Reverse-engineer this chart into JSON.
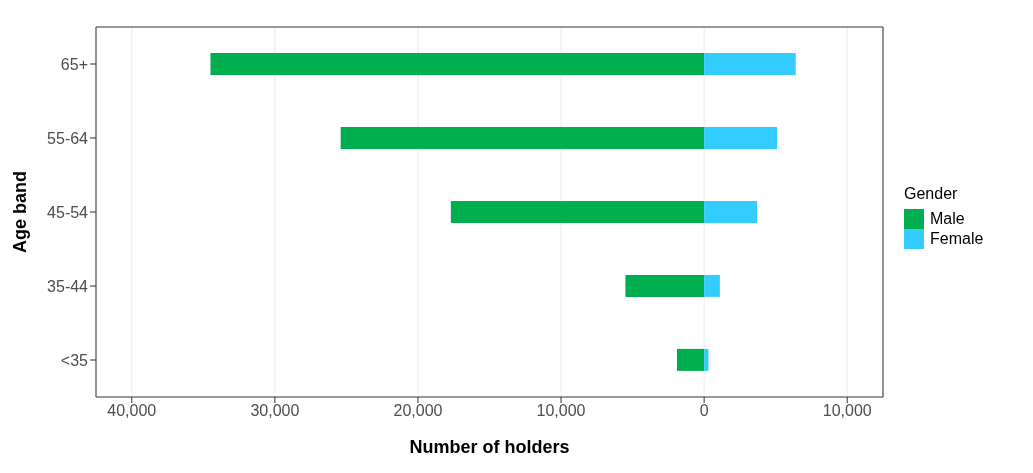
{
  "chart_data": {
    "type": "bar",
    "orientation": "horizontal",
    "stacked": true,
    "xlabel": "Number of holders",
    "ylabel": "Age band",
    "legend_title": "Gender",
    "categories": [
      "65+",
      "55-64",
      "45-54",
      "35-44",
      "<35"
    ],
    "series": [
      {
        "name": "Male",
        "color": "#00ae4f",
        "values": [
          -34500,
          -25400,
          -17700,
          -5500,
          -1900
        ]
      },
      {
        "name": "Female",
        "color": "#33ccff",
        "values": [
          6400,
          5100,
          3700,
          1100,
          300
        ]
      }
    ],
    "xlim": [
      -42500,
      12500
    ],
    "xticks": [
      {
        "value": -40000,
        "label": "40,000"
      },
      {
        "value": -30000,
        "label": "30,000"
      },
      {
        "value": -20000,
        "label": "20,000"
      },
      {
        "value": -10000,
        "label": "10,000"
      },
      {
        "value": 0,
        "label": "0"
      },
      {
        "value": 10000,
        "label": "10,000"
      }
    ],
    "grid": "x",
    "legend": "right"
  }
}
